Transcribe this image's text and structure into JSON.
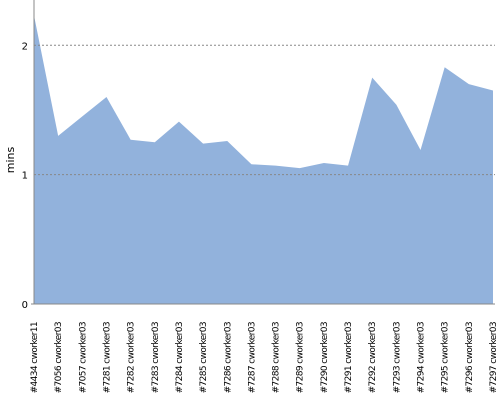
{
  "chart_data": {
    "type": "area",
    "y_label": "mins",
    "categories": [
      "#4434 cworker11",
      "#7056 cworker03",
      "#7057 cworker03",
      "#7281 cworker03",
      "#7282 cworker03",
      "#7283 cworker03",
      "#7284 cworker03",
      "#7285 cworker03",
      "#7286 cworker03",
      "#7287 cworker03",
      "#7288 cworker03",
      "#7289 cworker03",
      "#7290 cworker03",
      "#7291 cworker03",
      "#7292 cworker03",
      "#7293 cworker03",
      "#7294 cworker03",
      "#7295 cworker03",
      "#7296 cworker03",
      "#7297 cworker03"
    ],
    "values": [
      2.23,
      1.3,
      1.45,
      1.6,
      1.27,
      1.25,
      1.41,
      1.24,
      1.26,
      1.08,
      1.07,
      1.05,
      1.09,
      1.07,
      1.75,
      1.54,
      1.19,
      1.83,
      1.7,
      1.65
    ],
    "color": "#92b2dc",
    "ylim": [
      0,
      2.35
    ],
    "yticks": [
      0,
      1,
      2
    ],
    "grid": true
  }
}
